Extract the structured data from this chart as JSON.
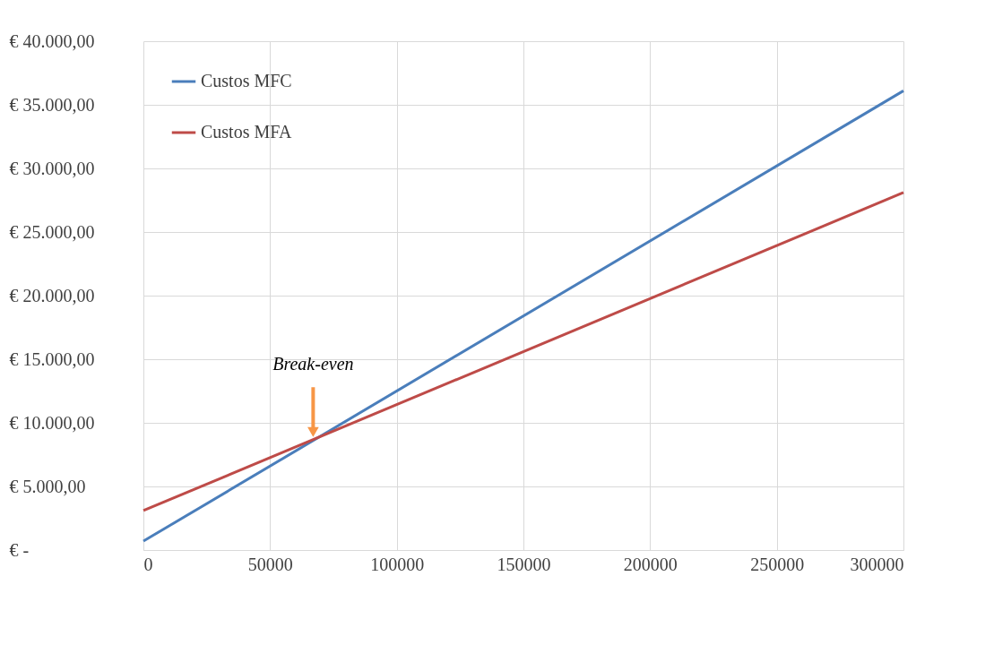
{
  "chart_data": {
    "type": "line",
    "x": [
      0,
      300000
    ],
    "series": [
      {
        "name": "Custos MFC",
        "color": "#4a7ebb",
        "values": [
          700,
          36100
        ]
      },
      {
        "name": "Custos MFA",
        "color": "#be4b48",
        "values": [
          3100,
          28100
        ]
      }
    ],
    "xlim": [
      0,
      300000
    ],
    "xticks": [
      0,
      50000,
      100000,
      150000,
      200000,
      250000,
      300000
    ],
    "ylim": [
      0,
      40000
    ],
    "yticks": [
      {
        "value": 0,
        "label": "€ -"
      },
      {
        "value": 5000,
        "label": "€ 5.000,00"
      },
      {
        "value": 10000,
        "label": "€ 10.000,00"
      },
      {
        "value": 15000,
        "label": "€ 15.000,00"
      },
      {
        "value": 20000,
        "label": "€ 20.000,00"
      },
      {
        "value": 25000,
        "label": "€ 25.000,00"
      },
      {
        "value": 30000,
        "label": "€ 30.000,00"
      },
      {
        "value": 35000,
        "label": "€ 35.000,00"
      },
      {
        "value": 40000,
        "label": "€ 40.000,00"
      }
    ],
    "annotations": [
      {
        "text": "Break-even",
        "x": 67000,
        "y": 8800
      }
    ],
    "grid": true,
    "legend": "top left",
    "marker": "none",
    "line_style": "solid"
  }
}
